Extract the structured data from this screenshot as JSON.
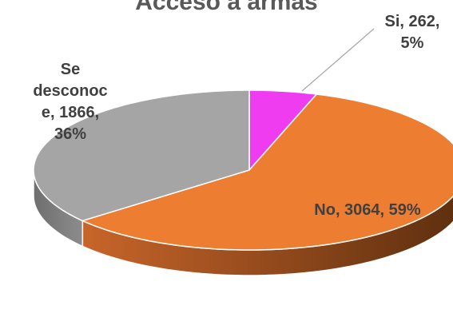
{
  "chart_data": {
    "type": "pie",
    "title": "Acceso a armas",
    "categories": [
      "Si",
      "No",
      "Se desconoce"
    ],
    "values": [
      262,
      3064,
      1866
    ],
    "value_labels": [
      "Si, 262, 5%",
      "No, 3064, 59%",
      "Se desconoce, 1866, 36%"
    ],
    "colors": [
      "#f03cf0",
      "#ed7d31",
      "#a5a5a5"
    ]
  }
}
